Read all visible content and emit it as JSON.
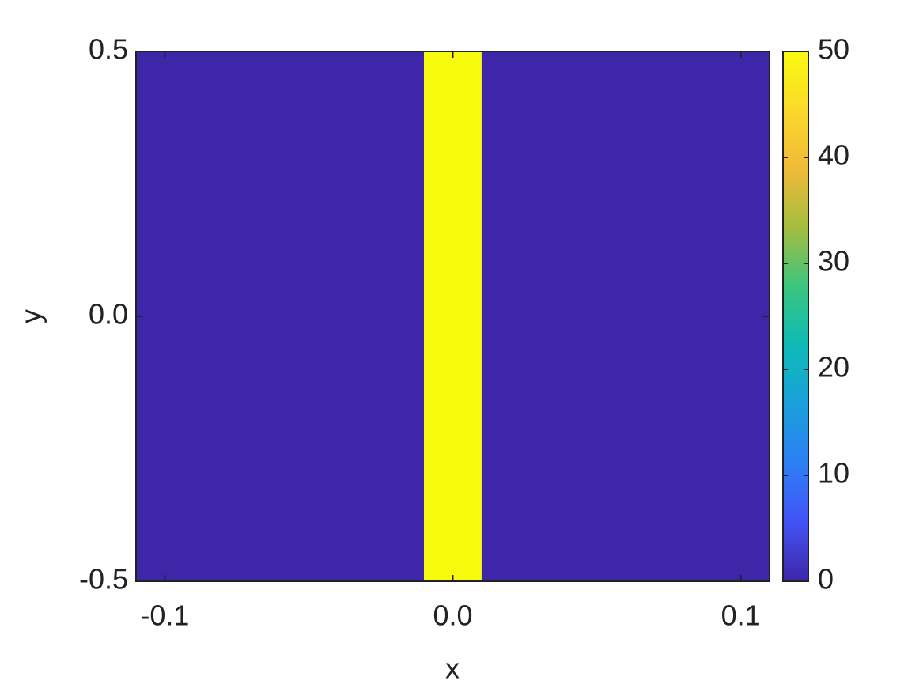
{
  "chart_data": {
    "type": "heatmap",
    "x_label": "x",
    "y_label": "y",
    "xbins": [
      -0.11,
      -0.01,
      0.01,
      0.11
    ],
    "values": [
      0,
      50,
      0
    ],
    "xlim": [
      -0.11,
      0.11
    ],
    "ylim": [
      -0.5,
      0.5
    ],
    "xticks": [
      -0.1,
      {
        "value": 0,
        "label": "0.0"
      },
      0.1
    ],
    "yticks": [
      -0.5,
      {
        "value": 0,
        "label": "0.0"
      },
      0.5
    ],
    "clim": [
      0,
      50
    ],
    "cticks": [
      0,
      10,
      20,
      30,
      40,
      50
    ],
    "colormap": [
      "#3e26a8",
      "#4352f5",
      "#2d7ff5",
      "#1aa0dc",
      "#0dbab6",
      "#3bc57f",
      "#a3bd40",
      "#f0ba38",
      "#fbd92a",
      "#f9fb0e"
    ]
  }
}
